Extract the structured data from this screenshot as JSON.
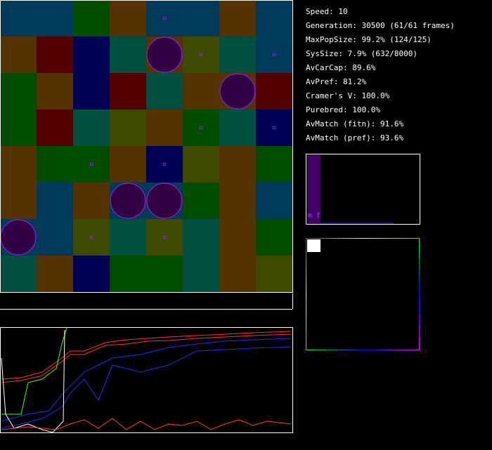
{
  "stats": [
    "Speed: 10",
    "Generation: 30500 (61/61 frames)",
    "MaxPopSize: 99.2% (124/125)",
    "SysSize: 7.9% (632/8000)",
    "AvCarCap: 89.6%",
    "AvPref: 81.2%",
    "Cramer's V: 100.0%",
    "Purebred: 100.0%",
    "AvMatch (fitn): 91.6%",
    "AvMatch (pref): 93.6%"
  ],
  "histogram": {
    "label": "m f"
  }
}
